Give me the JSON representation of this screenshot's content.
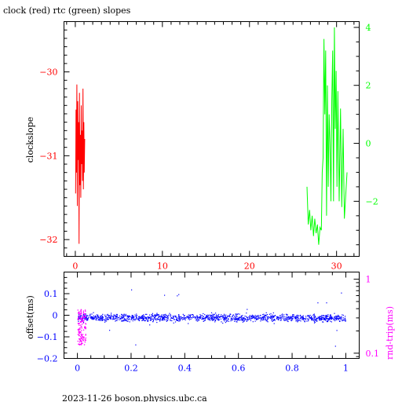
{
  "colors": {
    "clock": "#ff0000",
    "rtc": "#00ff00",
    "offset": "#0000ff",
    "rndtrip": "#ff00ff",
    "axis": "#000000"
  },
  "chart_data": [
    {
      "type": "line",
      "title": "clock (red) rtc (green) slopes",
      "ylabel": "clockslope",
      "xlim": [
        -1.3,
        32.6
      ],
      "ylim": [
        -32.2,
        -29.4
      ],
      "y2lim": [
        -3.9,
        4.2
      ],
      "x_ticks": [
        0,
        10,
        20,
        30
      ],
      "y_ticks": [
        -32,
        -31,
        -30
      ],
      "y2_ticks": [
        -2,
        0,
        2,
        4
      ],
      "grid": false,
      "series": [
        {
          "name": "clock",
          "axis": "left",
          "color": "#ff0000",
          "x": [
            0.03,
            0.08,
            0.13,
            0.18,
            0.23,
            0.28,
            0.33,
            0.38,
            0.43,
            0.48,
            0.53,
            0.58,
            0.63,
            0.68,
            0.73,
            0.78,
            0.83,
            0.88,
            0.93,
            0.98,
            1.03,
            1.08
          ],
          "y": [
            -31.45,
            -30.45,
            -31.2,
            -30.15,
            -31.6,
            -30.35,
            -31.05,
            -30.6,
            -32.05,
            -30.25,
            -31.35,
            -30.75,
            -31.5,
            -30.4,
            -31.1,
            -30.7,
            -31.3,
            -30.2,
            -31.4,
            -30.6,
            -31.2,
            -30.8
          ]
        },
        {
          "name": "rtc",
          "axis": "right",
          "color": "#00ff00",
          "x": [
            26.6,
            26.75,
            26.9,
            27.05,
            27.2,
            27.35,
            27.5,
            27.65,
            27.8,
            27.95,
            28.1,
            28.25,
            28.35,
            28.45,
            28.55,
            28.65,
            28.75,
            28.85,
            28.95,
            29.05,
            29.15,
            29.25,
            29.35,
            29.45,
            29.55,
            29.65,
            29.75,
            29.85,
            29.95,
            30.05,
            30.15,
            30.3,
            30.45,
            30.6,
            30.75,
            30.9,
            31.05,
            31.2
          ],
          "y": [
            -1.5,
            -2.8,
            -2.3,
            -3.0,
            -2.5,
            -3.2,
            -2.6,
            -3.1,
            -2.8,
            -3.5,
            -2.9,
            -3.0,
            -1.0,
            -0.5,
            3.6,
            1.0,
            3.2,
            -2.5,
            2.0,
            -1.5,
            1.0,
            0.0,
            -2.0,
            1.5,
            3.2,
            -2.0,
            4.0,
            0.5,
            2.5,
            -1.5,
            1.8,
            -2.0,
            1.2,
            -2.2,
            0.5,
            -2.6,
            -1.8,
            -1.0
          ]
        }
      ]
    },
    {
      "type": "scatter",
      "ylabel": "offset(ms)",
      "y2label": "rnd-trip(ms)",
      "xlim": [
        -0.05,
        1.05
      ],
      "ylim": [
        -0.2,
        0.2
      ],
      "y2lim": [
        0.085,
        1.25
      ],
      "y2_scale": "log",
      "x_ticks": [
        0,
        0.2,
        0.4,
        0.6,
        0.8,
        1
      ],
      "y_ticks": [
        -0.2,
        -0.1,
        0,
        0.1
      ],
      "y_tick_labels": [
        "-0.2",
        "-0.1",
        "0",
        "0.1"
      ],
      "y2_ticks": [
        0.1,
        1
      ],
      "grid": false,
      "series": [
        {
          "name": "offset",
          "axis": "left",
          "color": "#0000ff",
          "x_range": [
            0,
            1
          ],
          "center": -0.01,
          "spread": 0.03,
          "n_points": 1400
        },
        {
          "name": "rnd-trip",
          "axis": "right",
          "color": "#ff00ff",
          "x_range": [
            0,
            0.03
          ],
          "y_range": [
            0.13,
            0.4
          ],
          "n_points": 150
        }
      ]
    }
  ],
  "footer": "2023-11-26  boson.physics.ubc.ca"
}
